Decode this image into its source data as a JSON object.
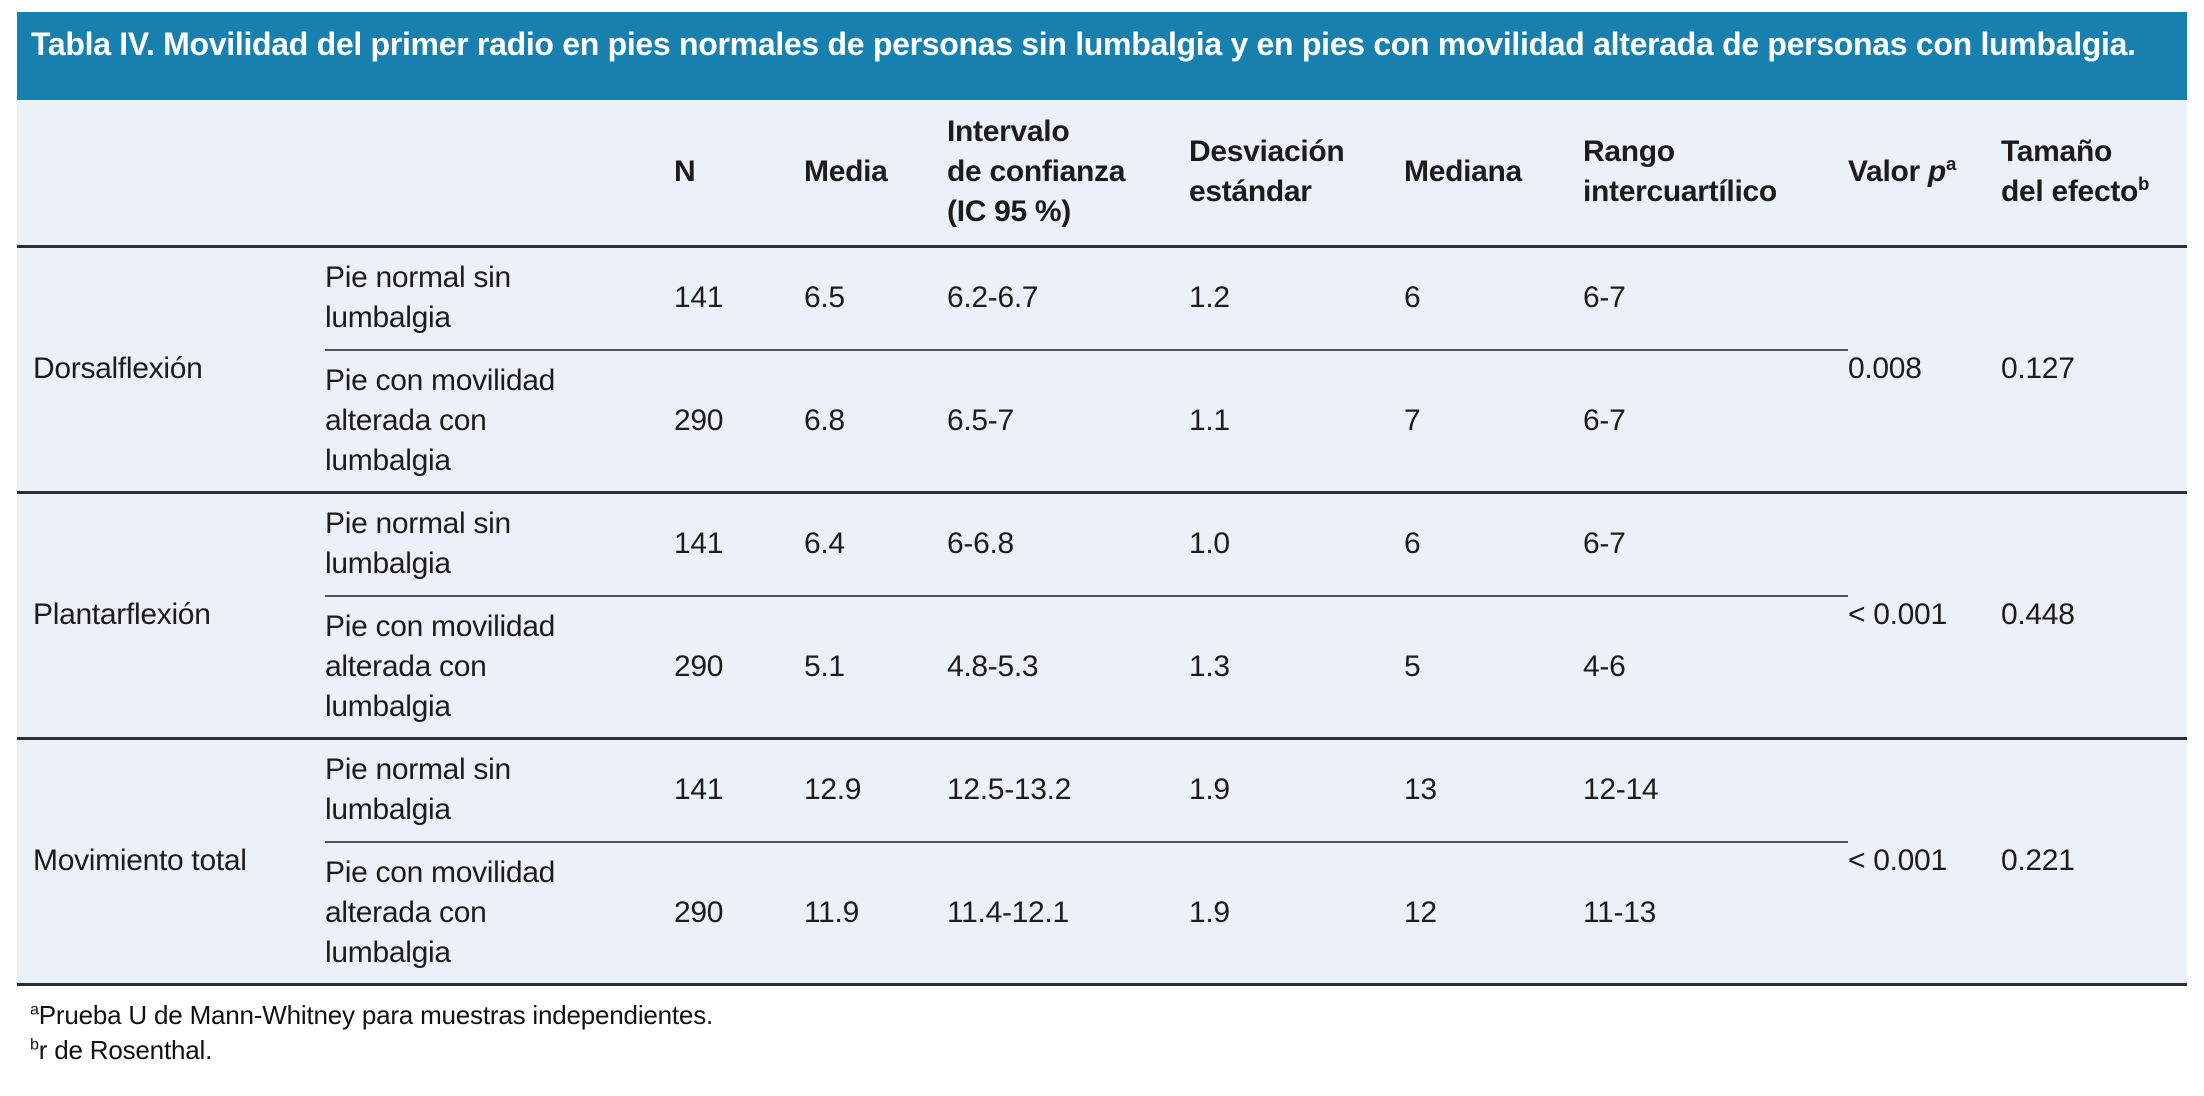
{
  "title": "Tabla IV. Movilidad del primer radio en pies normales de personas sin lumbalgia y en pies con movilidad alterada de personas con lumbalgia.",
  "colors": {
    "title_bar_bg": "#1880ae",
    "title_text": "#ffffff",
    "table_bg": "#ecf1f8",
    "rule_dark": "#2e2e2e",
    "rule_light": "#555555",
    "body_text": "#1c1c1c"
  },
  "table": {
    "header": {
      "n": "N",
      "media": "Media",
      "ic_line1": "Intervalo",
      "ic_line2": "de confianza",
      "ic_line3": "(IC 95 %)",
      "de_line1": "Desviación",
      "de_line2": "estándar",
      "mediana": "Mediana",
      "rango_line1": "Rango",
      "rango_line2": "intercuartílico",
      "valor_prefix": "Valor ",
      "valor_italic": "p",
      "valor_sup": "a",
      "tamano_line1": "Tamaño",
      "tamano_line2": "del efecto",
      "tamano_sup": "b"
    },
    "groups": [
      {
        "label": "Dorsalflexión",
        "p_value": "0.008",
        "effect_size": "0.127",
        "rows": [
          {
            "condition": "Pie normal sin lumbalgia",
            "n": "141",
            "media": "6.5",
            "ic": "6.2-6.7",
            "de": "1.2",
            "mediana": "6",
            "rango": "6-7"
          },
          {
            "condition": "Pie con movilidad alterada con lumbalgia",
            "n": "290",
            "media": "6.8",
            "ic": "6.5-7",
            "de": "1.1",
            "mediana": "7",
            "rango": "6-7"
          }
        ]
      },
      {
        "label": "Plantarflexión",
        "p_value": "< 0.001",
        "effect_size": "0.448",
        "rows": [
          {
            "condition": "Pie normal sin lumbalgia",
            "n": "141",
            "media": "6.4",
            "ic": "6-6.8",
            "de": "1.0",
            "mediana": "6",
            "rango": "6-7"
          },
          {
            "condition": "Pie con movilidad alterada con lumbalgia",
            "n": "290",
            "media": "5.1",
            "ic": "4.8-5.3",
            "de": "1.3",
            "mediana": "5",
            "rango": "4-6"
          }
        ]
      },
      {
        "label": "Movimiento total",
        "p_value": "< 0.001",
        "effect_size": "0.221",
        "rows": [
          {
            "condition": "Pie normal sin lumbalgia",
            "n": "141",
            "media": "12.9",
            "ic": "12.5-13.2",
            "de": "1.9",
            "mediana": "13",
            "rango": "12-14"
          },
          {
            "condition": "Pie con movilidad alterada con lumbalgia",
            "n": "290",
            "media": "11.9",
            "ic": "11.4-12.1",
            "de": "1.9",
            "mediana": "12",
            "rango": "11-13"
          }
        ]
      }
    ]
  },
  "footnotes": [
    {
      "sup": "a",
      "text": "Prueba U de Mann-Whitney para muestras independientes."
    },
    {
      "sup": "b",
      "text": "r de Rosenthal."
    }
  ]
}
